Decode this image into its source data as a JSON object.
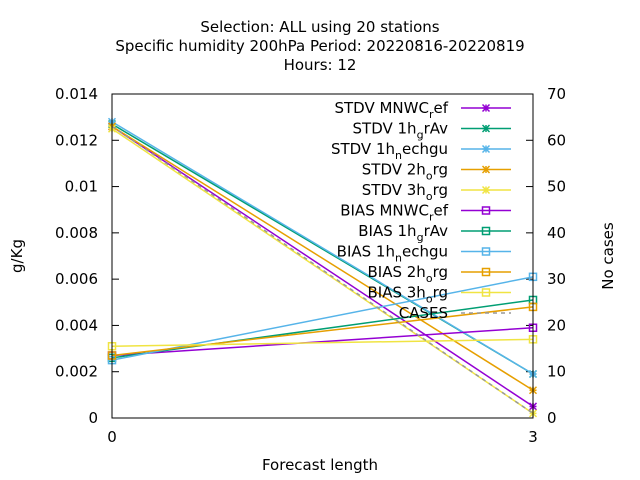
{
  "chart_data": {
    "type": "line",
    "title_lines": [
      "Selection: ALL using    20 stations",
      "Specific humidity 200hPa   Period: 20220816-20220819",
      "Hours:  12"
    ],
    "xlabel": "Forecast length",
    "ylabel": "g/Kg",
    "y2label": "No cases",
    "x_ticks": [
      "0",
      "3"
    ],
    "y_ticks": [
      "0",
      "0.002",
      "0.004",
      "0.006",
      "0.008",
      "0.01",
      "0.012",
      "0.014"
    ],
    "y2_ticks": [
      "0",
      "10",
      "20",
      "30",
      "40",
      "50",
      "60",
      "70"
    ],
    "xlim": [
      0,
      3
    ],
    "ylim": [
      0,
      0.014
    ],
    "y2lim": [
      0,
      70
    ],
    "grid": false,
    "legend_position": "top-right",
    "series": [
      {
        "name": "STDV MNWC",
        "sub": "r",
        "tail": "ef",
        "color": "#9400d3",
        "marker": "x-star",
        "x": [
          0,
          3
        ],
        "values": [
          0.0126,
          0.0005
        ]
      },
      {
        "name": "STDV 1h",
        "sub": "g",
        "tail": "rAv",
        "color": "#009e73",
        "marker": "x-star",
        "x": [
          0,
          3
        ],
        "values": [
          0.0127,
          0.0019
        ]
      },
      {
        "name": "STDV 1h",
        "sub": "n",
        "tail": "echgu",
        "color": "#56b4e9",
        "marker": "x-star",
        "x": [
          0,
          3
        ],
        "values": [
          0.0128,
          0.0019
        ]
      },
      {
        "name": "STDV 2h",
        "sub": "o",
        "tail": "rg",
        "color": "#e69f00",
        "marker": "x-star",
        "x": [
          0,
          3
        ],
        "values": [
          0.0126,
          0.0012
        ]
      },
      {
        "name": "STDV 3h",
        "sub": "o",
        "tail": "rg",
        "color": "#f0e442",
        "marker": "x-star",
        "x": [
          0,
          3
        ],
        "values": [
          0.0125,
          0.0002
        ]
      },
      {
        "name": "BIAS MNWC",
        "sub": "r",
        "tail": "ef",
        "color": "#9400d3",
        "marker": "square",
        "x": [
          0,
          3
        ],
        "values": [
          0.0027,
          0.0039
        ]
      },
      {
        "name": "BIAS 1h",
        "sub": "g",
        "tail": "rAv",
        "color": "#009e73",
        "marker": "square",
        "x": [
          0,
          3
        ],
        "values": [
          0.0026,
          0.0051
        ]
      },
      {
        "name": "BIAS 1h",
        "sub": "n",
        "tail": "echgu",
        "color": "#56b4e9",
        "marker": "square",
        "x": [
          0,
          3
        ],
        "values": [
          0.0025,
          0.0061
        ]
      },
      {
        "name": "BIAS 2h",
        "sub": "o",
        "tail": "rg",
        "color": "#e69f00",
        "marker": "square",
        "x": [
          0,
          3
        ],
        "values": [
          0.0027,
          0.0048
        ]
      },
      {
        "name": "BIAS 3h",
        "sub": "o",
        "tail": "rg",
        "color": "#f0e442",
        "marker": "square",
        "x": [
          0,
          3
        ],
        "values": [
          0.0031,
          0.0034
        ]
      },
      {
        "name": "CASES",
        "sub": "",
        "tail": "",
        "color": "#999999",
        "marker": "none",
        "dashed": true,
        "axis": "y2",
        "x": [
          0,
          3
        ],
        "values": [
          63,
          1
        ]
      }
    ]
  }
}
